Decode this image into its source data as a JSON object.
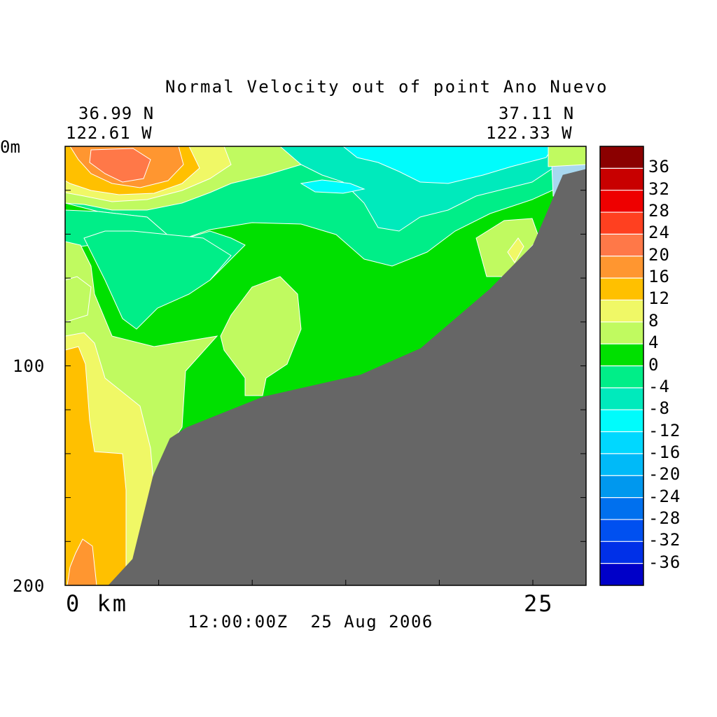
{
  "chart_data": {
    "type": "heatmap",
    "title": "Normal Velocity out of point Ano Nuevo",
    "corner_left": {
      "lat": "36.99 N",
      "lon": "122.61 W"
    },
    "corner_right": {
      "lat": "37.11 N",
      "lon": "122.33 W"
    },
    "timestamp": "12:00:00Z  25 Aug 2006",
    "x_axis": {
      "labels": [
        {
          "value": 0,
          "text": "0 km"
        },
        {
          "value": 25,
          "text": "25"
        }
      ],
      "range": [
        0,
        28
      ]
    },
    "y_axis": {
      "labels": [
        {
          "value": 0,
          "text": "0m"
        },
        {
          "value": 100,
          "text": "100"
        },
        {
          "value": 200,
          "text": "200"
        }
      ],
      "range": [
        0,
        200
      ],
      "direction": "depth-down"
    },
    "colorbar": {
      "levels": [
        36,
        32,
        28,
        24,
        20,
        16,
        12,
        8,
        4,
        0,
        -4,
        -8,
        -12,
        -16,
        -20,
        -24,
        -28,
        -32,
        -36
      ],
      "bands": [
        {
          "min": 40,
          "max": 36,
          "color": "#8b0000"
        },
        {
          "min": 36,
          "max": 32,
          "color": "#c80000"
        },
        {
          "min": 32,
          "max": 28,
          "color": "#ee0000"
        },
        {
          "min": 28,
          "max": 24,
          "color": "#ff4020"
        },
        {
          "min": 24,
          "max": 20,
          "color": "#ff7848"
        },
        {
          "min": 20,
          "max": 16,
          "color": "#ff9630"
        },
        {
          "min": 16,
          "max": 12,
          "color": "#ffc000"
        },
        {
          "min": 12,
          "max": 8,
          "color": "#f0f866"
        },
        {
          "min": 8,
          "max": 4,
          "color": "#c0fa60"
        },
        {
          "min": 4,
          "max": 0,
          "color": "#00e000"
        },
        {
          "min": 0,
          "max": -4,
          "color": "#00ee88"
        },
        {
          "min": -4,
          "max": -8,
          "color": "#00eabc"
        },
        {
          "min": -8,
          "max": -12,
          "color": "#00fcfc"
        },
        {
          "min": -12,
          "max": -16,
          "color": "#00d8ff"
        },
        {
          "min": -16,
          "max": -20,
          "color": "#00baf8"
        },
        {
          "min": -20,
          "max": -24,
          "color": "#0098ee"
        },
        {
          "min": -24,
          "max": -28,
          "color": "#0070ee"
        },
        {
          "min": -28,
          "max": -32,
          "color": "#0050f0"
        },
        {
          "min": -32,
          "max": -36,
          "color": "#0030e8"
        },
        {
          "min": -36,
          "max": -40,
          "color": "#0000c8"
        }
      ]
    },
    "bathymetry_color": "#666666",
    "bottom_profile_depth_m": [
      {
        "x": 2.3,
        "depth": 200
      },
      {
        "x": 3.6,
        "depth": 188
      },
      {
        "x": 4.7,
        "depth": 150
      },
      {
        "x": 5.6,
        "depth": 133
      },
      {
        "x": 6.5,
        "depth": 128
      },
      {
        "x": 10.6,
        "depth": 114
      },
      {
        "x": 15.8,
        "depth": 104
      },
      {
        "x": 19.0,
        "depth": 92
      },
      {
        "x": 22.7,
        "depth": 65
      },
      {
        "x": 25.0,
        "depth": 45
      },
      {
        "x": 26.6,
        "depth": 13
      },
      {
        "x": 28.0,
        "depth": 10
      }
    ]
  }
}
